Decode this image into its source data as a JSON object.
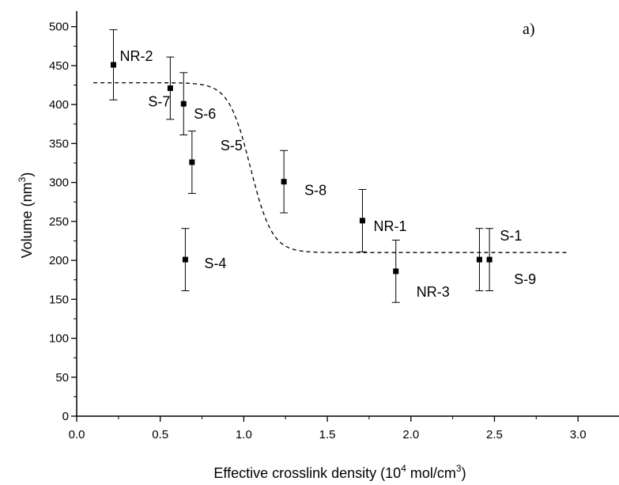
{
  "chart_data": {
    "type": "scatter",
    "panel_label": "a)",
    "xlabel": {
      "main": "Effective crosslink density (10",
      "sup1": "4",
      "mid": " mol/cm",
      "sup2": "3",
      "end": ")"
    },
    "ylabel": {
      "main": "Volume (nm",
      "sup": "3",
      "end": ")"
    },
    "xlim": [
      0.0,
      3.25
    ],
    "ylim": [
      0,
      520
    ],
    "x_ticks": [
      "0.0",
      "0.5",
      "1.0",
      "1.5",
      "2.0",
      "2.5",
      "3.0"
    ],
    "y_ticks": [
      "0",
      "50",
      "100",
      "150",
      "200",
      "250",
      "300",
      "350",
      "400",
      "450",
      "500"
    ],
    "grid": false,
    "points": [
      {
        "label": "NR-2",
        "x": 0.22,
        "y": 451,
        "err": 45
      },
      {
        "label": "S-7",
        "x": 0.56,
        "y": 421,
        "err": 40
      },
      {
        "label": "S-6",
        "x": 0.64,
        "y": 401,
        "err": 40
      },
      {
        "label": "S-5",
        "x": 0.69,
        "y": 326,
        "err": 40
      },
      {
        "label": "S-4",
        "x": 0.65,
        "y": 201,
        "err": 40
      },
      {
        "label": "S-8",
        "x": 1.24,
        "y": 301,
        "err": 40
      },
      {
        "label": "NR-1",
        "x": 1.71,
        "y": 251,
        "err": 40
      },
      {
        "label": "NR-3",
        "x": 1.91,
        "y": 186,
        "err": 40
      },
      {
        "label": "S-1",
        "x": 2.41,
        "y": 201,
        "err": 40
      },
      {
        "label": "S-9",
        "x": 2.47,
        "y": 201,
        "err": 40
      }
    ],
    "fit_curve": {
      "style": "dashed",
      "x_start": 0.1,
      "x_end": 2.95,
      "upper": 428,
      "lower": 210,
      "center": 1.04,
      "width": 0.065
    }
  }
}
